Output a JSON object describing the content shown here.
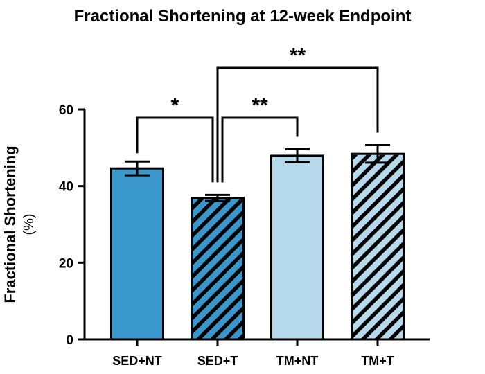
{
  "chart_data": {
    "type": "bar",
    "title": "Fractional Shortening at 12-week Endpoint",
    "xlabel": "",
    "ylabel": "Fractional Shortening",
    "ylabel_unit": "(%)",
    "ylim": [
      0,
      60
    ],
    "yticks": [
      0,
      20,
      40,
      60
    ],
    "ytick_labels": [
      "0",
      "20",
      "40",
      "60"
    ],
    "grid": false,
    "categories": [
      "SED+NT",
      "SED+T",
      "TM+NT",
      "TM+T"
    ],
    "values": [
      44.6,
      36.9,
      47.9,
      48.4
    ],
    "errors": [
      1.8,
      0.8,
      1.7,
      2.3
    ],
    "colors": [
      "#3a97cc",
      "#3a97cc",
      "#b6d9ec",
      "#b6d9ec"
    ],
    "hatched": [
      false,
      true,
      false,
      true
    ],
    "significance": [
      {
        "from": 0,
        "to": 1,
        "label": "*"
      },
      {
        "from": 1,
        "to": 2,
        "label": "**"
      },
      {
        "from": 1,
        "to": 3,
        "label": "**"
      }
    ]
  }
}
